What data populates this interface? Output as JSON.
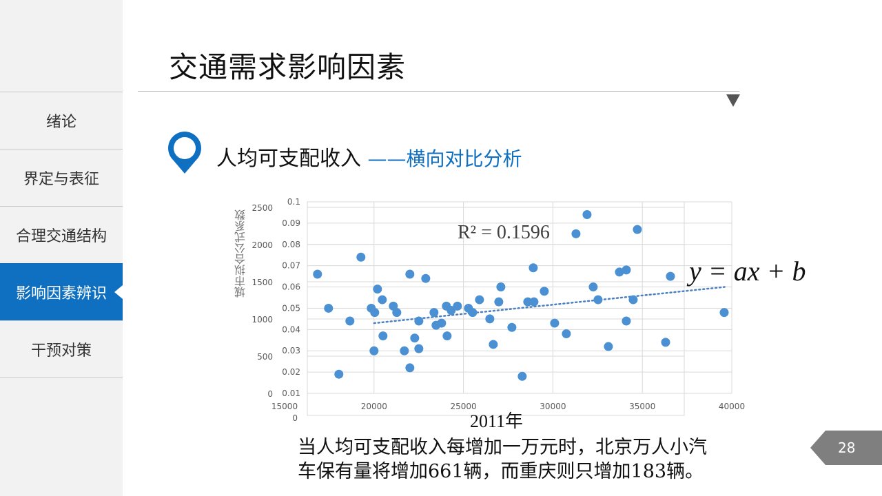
{
  "sidebar": {
    "items": [
      {
        "label": "绪论"
      },
      {
        "label": "界定与表征"
      },
      {
        "label": "合理交通结构"
      },
      {
        "label": "影响因素辨识",
        "active": true
      },
      {
        "label": "干预对策"
      }
    ],
    "active_color": "#0f6fc0"
  },
  "header": {
    "title": "交通需求影响因素"
  },
  "section": {
    "subtitle": "人均可支配收入 ",
    "subtitle_accent": "——横向对比分析"
  },
  "chart_data": {
    "type": "scatter",
    "ylabel": "城市拟合公式系数",
    "xlim": [
      15000,
      40000
    ],
    "ylim": [
      0.01,
      0.1
    ],
    "x_ticks": [
      "15000",
      "20000",
      "25000",
      "30000",
      "35000",
      "40000"
    ],
    "y_ticks": [
      "0.01",
      "0.02",
      "0.03",
      "0.04",
      "0.05",
      "0.06",
      "0.07",
      "0.08",
      "0.09",
      "0.1"
    ],
    "secondary_y_ticks": [
      "0",
      "500",
      "1000",
      "1500",
      "2000",
      "2500"
    ],
    "secondary_x_ticks": [
      "0"
    ],
    "grid": true,
    "color": "#4a90d2",
    "points": [
      [
        16840,
        0.066
      ],
      [
        17457,
        0.05
      ],
      [
        18651,
        0.044
      ],
      [
        18035,
        0.019
      ],
      [
        19268,
        0.074
      ],
      [
        19846,
        0.05
      ],
      [
        20039,
        0.048
      ],
      [
        20000,
        0.03
      ],
      [
        20193,
        0.059
      ],
      [
        20462,
        0.054
      ],
      [
        20501,
        0.037
      ],
      [
        21079,
        0.051
      ],
      [
        21272,
        0.048
      ],
      [
        21696,
        0.03
      ],
      [
        22004,
        0.066
      ],
      [
        22004,
        0.022
      ],
      [
        22274,
        0.036
      ],
      [
        22505,
        0.044
      ],
      [
        22505,
        0.031
      ],
      [
        22890,
        0.064
      ],
      [
        23353,
        0.048
      ],
      [
        23468,
        0.042
      ],
      [
        23776,
        0.043
      ],
      [
        24046,
        0.051
      ],
      [
        24085,
        0.037
      ],
      [
        24316,
        0.049
      ],
      [
        24663,
        0.051
      ],
      [
        25279,
        0.05
      ],
      [
        25511,
        0.048
      ],
      [
        25896,
        0.054
      ],
      [
        26474,
        0.045
      ],
      [
        26667,
        0.033
      ],
      [
        26975,
        0.053
      ],
      [
        27091,
        0.06
      ],
      [
        27707,
        0.041
      ],
      [
        28285,
        0.018
      ],
      [
        28593,
        0.053
      ],
      [
        28902,
        0.069
      ],
      [
        28940,
        0.053
      ],
      [
        29518,
        0.058
      ],
      [
        30096,
        0.043
      ],
      [
        30751,
        0.038
      ],
      [
        31291,
        0.085
      ],
      [
        31908,
        0.094
      ],
      [
        32254,
        0.06
      ],
      [
        32524,
        0.054
      ],
      [
        33102,
        0.032
      ],
      [
        33719,
        0.067
      ],
      [
        34104,
        0.044
      ],
      [
        34104,
        0.068
      ],
      [
        34489,
        0.054
      ],
      [
        34720,
        0.087
      ],
      [
        36301,
        0.034
      ],
      [
        36570,
        0.065
      ],
      [
        39576,
        0.048
      ]
    ],
    "trendline": {
      "style": "dotted",
      "x": [
        20000,
        39600
      ],
      "y": [
        0.043,
        0.06
      ],
      "r2_label": "R² = 0.1596"
    },
    "equation": "y = ax + b",
    "xlabel": "2011年"
  },
  "note": {
    "line1": "当人均可支配收入每增加一万元时，北京万人小汽",
    "line2": "车保有量将增加661辆，而重庆则只增加183辆。"
  },
  "page_number": "28"
}
